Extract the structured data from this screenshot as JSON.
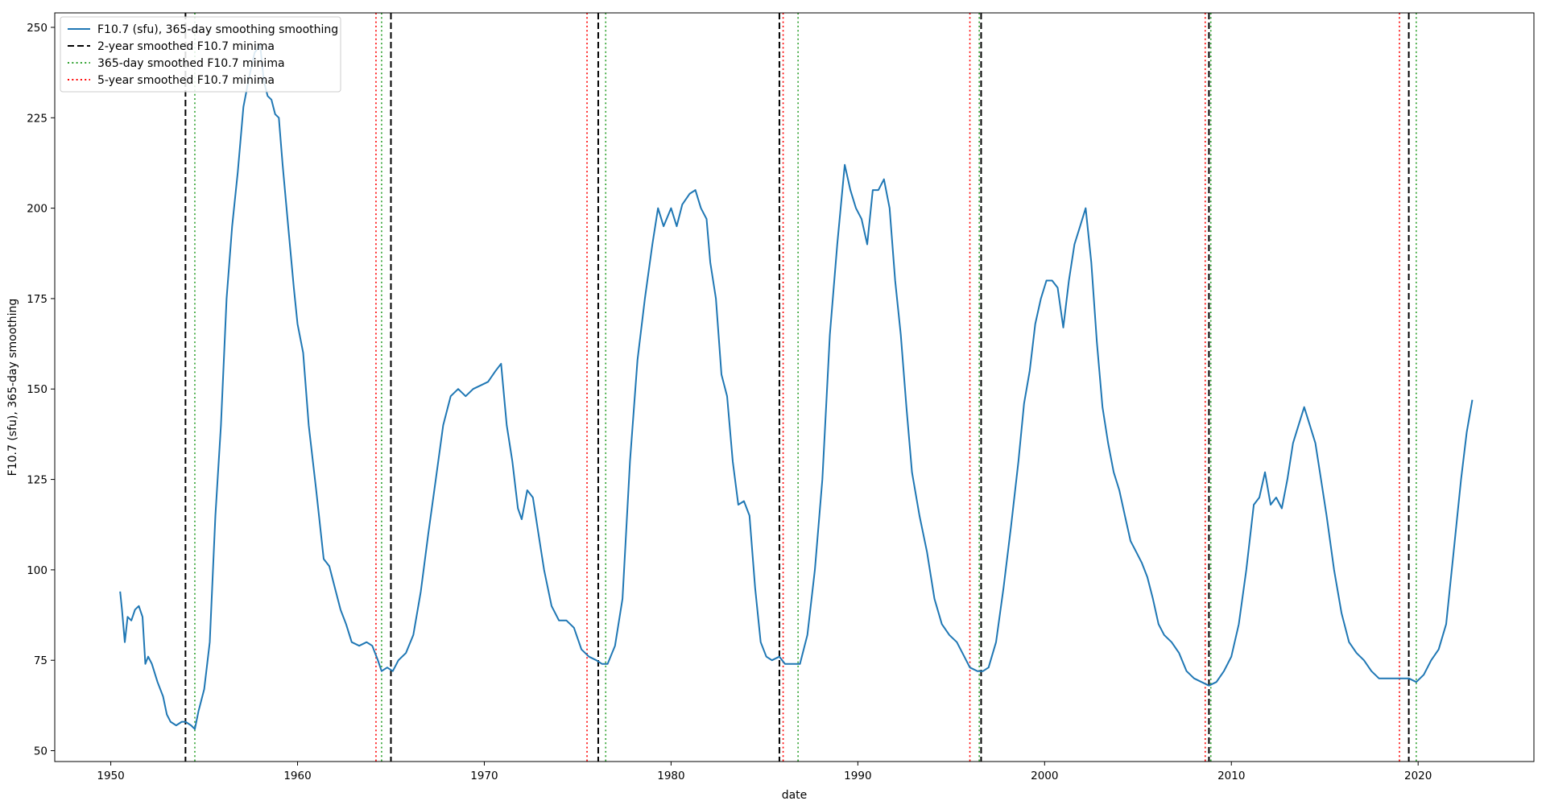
{
  "chart_data": {
    "type": "line",
    "xlabel": "date",
    "ylabel": "F10.7 (sfu), 365-day smoothing",
    "xlim": [
      1947.0,
      2026.2
    ],
    "ylim": [
      47,
      254
    ],
    "xticks": [
      1950,
      1960,
      1970,
      1980,
      1990,
      2000,
      2010,
      2020
    ],
    "yticks": [
      50,
      75,
      100,
      125,
      150,
      175,
      200,
      225,
      250
    ],
    "grid": false,
    "legend_position": "upper-left",
    "series": [
      {
        "name": "F10.7 (sfu), 365-day smoothing smoothing",
        "color": "#1f77b4",
        "style": "solid",
        "points": [
          [
            1950.5,
            94
          ],
          [
            1950.6,
            89
          ],
          [
            1950.75,
            80
          ],
          [
            1950.9,
            87
          ],
          [
            1951.1,
            86
          ],
          [
            1951.3,
            89
          ],
          [
            1951.5,
            90
          ],
          [
            1951.7,
            87
          ],
          [
            1951.85,
            74
          ],
          [
            1952.0,
            76
          ],
          [
            1952.2,
            74
          ],
          [
            1952.5,
            69
          ],
          [
            1952.8,
            65
          ],
          [
            1953.0,
            60
          ],
          [
            1953.2,
            58
          ],
          [
            1953.5,
            57
          ],
          [
            1953.8,
            58
          ],
          [
            1954.0,
            58
          ],
          [
            1954.3,
            57
          ],
          [
            1954.5,
            56
          ],
          [
            1954.7,
            61
          ],
          [
            1955.0,
            67
          ],
          [
            1955.3,
            80
          ],
          [
            1955.6,
            115
          ],
          [
            1955.9,
            140
          ],
          [
            1956.2,
            175
          ],
          [
            1956.5,
            195
          ],
          [
            1956.8,
            210
          ],
          [
            1957.1,
            228
          ],
          [
            1957.4,
            236
          ],
          [
            1957.7,
            243
          ],
          [
            1958.0,
            245
          ],
          [
            1958.2,
            235
          ],
          [
            1958.4,
            231
          ],
          [
            1958.6,
            230
          ],
          [
            1958.8,
            226
          ],
          [
            1959.0,
            225
          ],
          [
            1959.2,
            212
          ],
          [
            1959.5,
            195
          ],
          [
            1959.8,
            178
          ],
          [
            1960.0,
            168
          ],
          [
            1960.3,
            160
          ],
          [
            1960.6,
            140
          ],
          [
            1961.0,
            122
          ],
          [
            1961.4,
            103
          ],
          [
            1961.7,
            101
          ],
          [
            1962.0,
            95
          ],
          [
            1962.3,
            89
          ],
          [
            1962.6,
            85
          ],
          [
            1962.9,
            80
          ],
          [
            1963.3,
            79
          ],
          [
            1963.7,
            80
          ],
          [
            1964.0,
            79
          ],
          [
            1964.3,
            75
          ],
          [
            1964.5,
            72
          ],
          [
            1964.8,
            73
          ],
          [
            1965.1,
            72
          ],
          [
            1965.4,
            75
          ],
          [
            1965.8,
            77
          ],
          [
            1966.2,
            82
          ],
          [
            1966.6,
            94
          ],
          [
            1967.0,
            110
          ],
          [
            1967.4,
            125
          ],
          [
            1967.8,
            140
          ],
          [
            1968.2,
            148
          ],
          [
            1968.6,
            150
          ],
          [
            1969.0,
            148
          ],
          [
            1969.4,
            150
          ],
          [
            1969.8,
            151
          ],
          [
            1970.2,
            152
          ],
          [
            1970.6,
            155
          ],
          [
            1970.9,
            157
          ],
          [
            1971.2,
            140
          ],
          [
            1971.5,
            130
          ],
          [
            1971.8,
            117
          ],
          [
            1972.0,
            114
          ],
          [
            1972.3,
            122
          ],
          [
            1972.6,
            120
          ],
          [
            1972.9,
            110
          ],
          [
            1973.2,
            100
          ],
          [
            1973.6,
            90
          ],
          [
            1974.0,
            86
          ],
          [
            1974.4,
            86
          ],
          [
            1974.8,
            84
          ],
          [
            1975.2,
            78
          ],
          [
            1975.6,
            76
          ],
          [
            1976.0,
            75
          ],
          [
            1976.3,
            74
          ],
          [
            1976.6,
            74
          ],
          [
            1977.0,
            79
          ],
          [
            1977.4,
            92
          ],
          [
            1977.8,
            130
          ],
          [
            1978.2,
            158
          ],
          [
            1978.6,
            175
          ],
          [
            1979.0,
            190
          ],
          [
            1979.3,
            200
          ],
          [
            1979.6,
            195
          ],
          [
            1980.0,
            200
          ],
          [
            1980.3,
            195
          ],
          [
            1980.6,
            201
          ],
          [
            1981.0,
            204
          ],
          [
            1981.3,
            205
          ],
          [
            1981.6,
            200
          ],
          [
            1981.9,
            197
          ],
          [
            1982.1,
            185
          ],
          [
            1982.4,
            175
          ],
          [
            1982.7,
            154
          ],
          [
            1983.0,
            148
          ],
          [
            1983.3,
            130
          ],
          [
            1983.6,
            118
          ],
          [
            1983.9,
            119
          ],
          [
            1984.2,
            115
          ],
          [
            1984.5,
            95
          ],
          [
            1984.8,
            80
          ],
          [
            1985.1,
            76
          ],
          [
            1985.4,
            75
          ],
          [
            1985.8,
            76
          ],
          [
            1986.1,
            74
          ],
          [
            1986.5,
            74
          ],
          [
            1986.9,
            74
          ],
          [
            1987.3,
            82
          ],
          [
            1987.7,
            100
          ],
          [
            1988.1,
            125
          ],
          [
            1988.5,
            165
          ],
          [
            1988.9,
            190
          ],
          [
            1989.3,
            212
          ],
          [
            1989.6,
            205
          ],
          [
            1989.9,
            200
          ],
          [
            1990.2,
            197
          ],
          [
            1990.5,
            190
          ],
          [
            1990.8,
            205
          ],
          [
            1991.1,
            205
          ],
          [
            1991.4,
            208
          ],
          [
            1991.7,
            200
          ],
          [
            1992.0,
            180
          ],
          [
            1992.3,
            165
          ],
          [
            1992.6,
            145
          ],
          [
            1992.9,
            127
          ],
          [
            1993.3,
            115
          ],
          [
            1993.7,
            105
          ],
          [
            1994.1,
            92
          ],
          [
            1994.5,
            85
          ],
          [
            1994.9,
            82
          ],
          [
            1995.3,
            80
          ],
          [
            1995.7,
            76
          ],
          [
            1996.0,
            73
          ],
          [
            1996.4,
            72
          ],
          [
            1996.7,
            72
          ],
          [
            1997.0,
            73
          ],
          [
            1997.4,
            80
          ],
          [
            1997.8,
            95
          ],
          [
            1998.2,
            112
          ],
          [
            1998.6,
            130
          ],
          [
            1998.9,
            146
          ],
          [
            1999.2,
            155
          ],
          [
            1999.5,
            168
          ],
          [
            1999.8,
            175
          ],
          [
            2000.1,
            180
          ],
          [
            2000.4,
            180
          ],
          [
            2000.7,
            178
          ],
          [
            2001.0,
            167
          ],
          [
            2001.3,
            180
          ],
          [
            2001.6,
            190
          ],
          [
            2001.9,
            195
          ],
          [
            2002.2,
            200
          ],
          [
            2002.5,
            185
          ],
          [
            2002.8,
            163
          ],
          [
            2003.1,
            145
          ],
          [
            2003.4,
            135
          ],
          [
            2003.7,
            127
          ],
          [
            2004.0,
            122
          ],
          [
            2004.3,
            115
          ],
          [
            2004.6,
            108
          ],
          [
            2004.9,
            105
          ],
          [
            2005.2,
            102
          ],
          [
            2005.5,
            98
          ],
          [
            2005.8,
            92
          ],
          [
            2006.1,
            85
          ],
          [
            2006.4,
            82
          ],
          [
            2006.8,
            80
          ],
          [
            2007.2,
            77
          ],
          [
            2007.6,
            72
          ],
          [
            2008.0,
            70
          ],
          [
            2008.4,
            69
          ],
          [
            2008.8,
            68
          ],
          [
            2009.2,
            69
          ],
          [
            2009.6,
            72
          ],
          [
            2010.0,
            76
          ],
          [
            2010.4,
            85
          ],
          [
            2010.8,
            100
          ],
          [
            2011.2,
            118
          ],
          [
            2011.5,
            120
          ],
          [
            2011.8,
            127
          ],
          [
            2012.1,
            118
          ],
          [
            2012.4,
            120
          ],
          [
            2012.7,
            117
          ],
          [
            2013.0,
            125
          ],
          [
            2013.3,
            135
          ],
          [
            2013.6,
            140
          ],
          [
            2013.9,
            145
          ],
          [
            2014.2,
            140
          ],
          [
            2014.5,
            135
          ],
          [
            2014.8,
            125
          ],
          [
            2015.1,
            115
          ],
          [
            2015.5,
            100
          ],
          [
            2015.9,
            88
          ],
          [
            2016.3,
            80
          ],
          [
            2016.7,
            77
          ],
          [
            2017.1,
            75
          ],
          [
            2017.5,
            72
          ],
          [
            2017.9,
            70
          ],
          [
            2018.3,
            70
          ],
          [
            2018.7,
            70
          ],
          [
            2019.1,
            70
          ],
          [
            2019.5,
            70
          ],
          [
            2019.9,
            69
          ],
          [
            2020.3,
            71
          ],
          [
            2020.7,
            75
          ],
          [
            2021.1,
            78
          ],
          [
            2021.5,
            85
          ],
          [
            2021.9,
            105
          ],
          [
            2022.3,
            125
          ],
          [
            2022.6,
            138
          ],
          [
            2022.9,
            147
          ]
        ]
      }
    ],
    "vertical_lines": [
      {
        "name": "2-year smoothed F10.7 minima",
        "color": "#000000",
        "style": "dashed",
        "x": [
          1954.0,
          1965.0,
          1976.1,
          1985.8,
          1996.6,
          2008.8,
          2019.5
        ]
      },
      {
        "name": "365-day smoothed F10.7 minima",
        "color": "#2ca02c",
        "style": "dotted",
        "x": [
          1954.5,
          1964.5,
          1976.5,
          1986.8,
          1996.5,
          2008.9,
          2019.9
        ]
      },
      {
        "name": "5-year smoothed F10.7 minima",
        "color": "#ff0000",
        "style": "dotted",
        "x": [
          1964.2,
          1975.5,
          1986.0,
          1996.0,
          2008.6,
          2019.0
        ]
      }
    ]
  }
}
